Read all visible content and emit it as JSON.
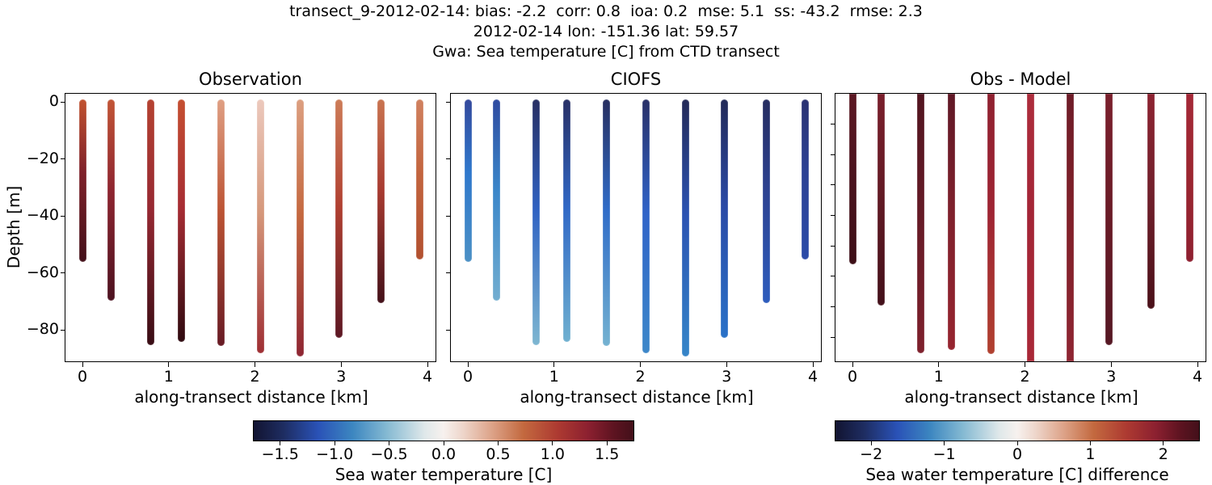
{
  "figure": {
    "title_line1": "transect_9-2012-02-14: bias: -2.2  corr: 0.8  ioa: 0.2  mse: 5.1  ss: -43.2  rmse: 2.3",
    "title_line2": "2012-02-14 lon: -151.36 lat: 59.57",
    "title_line3": "Gwa: Sea temperature [C] from CTD transect",
    "stats": {
      "bias": -2.2,
      "corr": 0.8,
      "ioa": 0.2,
      "mse": 5.1,
      "ss": -43.2,
      "rmse": 2.3
    },
    "date": "2012-02-14",
    "lon": -151.36,
    "lat": 59.57
  },
  "chart_data": {
    "type": "scatter",
    "description": "Three panels of vertical CTD profile scatter columns (sea water temperature) along a transect: Observation, CIOFS model, and Obs - Model difference, with two horizontal diverging colorbars below.",
    "xlabel": "along-transect distance [km]",
    "ylabel": "Depth [m]",
    "x_ticks": [
      "0",
      "1",
      "2",
      "3",
      "4"
    ],
    "x_tick_values": [
      0,
      1,
      2,
      3,
      4
    ],
    "y_ticks": [
      "0",
      "−20",
      "−40",
      "−60",
      "−80"
    ],
    "y_tick_values": [
      0,
      -20,
      -40,
      -60,
      -80
    ],
    "xlim": [
      -0.2,
      4.3
    ],
    "ylim": [
      -91.5,
      3.0
    ],
    "grid": false,
    "legend": "none",
    "stations_x_km": [
      0.0,
      0.33,
      0.79,
      1.15,
      1.61,
      2.07,
      2.52,
      2.97,
      3.46,
      3.91
    ],
    "station_bottom_depth_m": [
      -55,
      -68.5,
      -84,
      -83,
      -84.5,
      -87,
      -88,
      -81.5,
      -69.5,
      -54
    ],
    "station_top_depth_m": 0,
    "panels": [
      {
        "title": "Observation",
        "value_meaning": "sea water temperature [C], warm diverging reds, roughly +0.3 C at surface of mid-transect casts to +1.7 C (dark maroon) at depth",
        "column_gradients": [
          [
            "#c1522f",
            "#7e2029",
            "#431019"
          ],
          [
            "#c25536",
            "#8e2530",
            "#4c1220"
          ],
          [
            "#b54231",
            "#962832",
            "#380c14"
          ],
          [
            "#c54f31",
            "#a62c33",
            "#2f0a10"
          ],
          [
            "#df9f83",
            "#bc5434",
            "#671a24"
          ],
          [
            "#ecc9bd",
            "#d5977a",
            "#9e2e33"
          ],
          [
            "#dc9f80",
            "#c4683f",
            "#8e2532"
          ],
          [
            "#cd7c58",
            "#b04031",
            "#5c1723"
          ],
          [
            "#c97450",
            "#a73a30",
            "#431019"
          ],
          [
            "#d0815f",
            "#c3653f",
            "#b2502f"
          ]
        ]
      },
      {
        "title": "CIOFS",
        "value_meaning": "modeled sea water temperature [C], cool diverging blues, about -1.6 C (dark navy) at surface to -0.5 C (light blue) at depth",
        "column_gradients": [
          [
            "#33489c",
            "#2f78cc",
            "#4b90c5"
          ],
          [
            "#2e4aa0",
            "#3a86c9",
            "#72aed0"
          ],
          [
            "#272e63",
            "#2f62c2",
            "#7db6d1"
          ],
          [
            "#282f66",
            "#3068c6",
            "#6fb0d0"
          ],
          [
            "#272e60",
            "#2f6cc8",
            "#74b2d1"
          ],
          [
            "#282f68",
            "#2f63c8",
            "#3c87c9"
          ],
          [
            "#242a58",
            "#2b53b2",
            "#3585c8"
          ],
          [
            "#232a58",
            "#2a4aa6",
            "#2a72c8"
          ],
          [
            "#252c60",
            "#2c4191",
            "#2d5cbd"
          ],
          [
            "#2a3272",
            "#2c4294",
            "#2b4ba8"
          ]
        ]
      },
      {
        "title": "Obs - Model",
        "value_meaning": "observation minus model temperature difference [C], uniformly dark red (~+2 C); columns are clipped at the axes top and the deepest casts reach the axes bottom",
        "column_gradients": [
          [
            "#5c1823",
            "#4c131e",
            "#3c0e16"
          ],
          [
            "#7a1f2c",
            "#641a25",
            "#43101a"
          ],
          [
            "#521520",
            "#641a26",
            "#7e202c"
          ],
          [
            "#601826",
            "#7e202c",
            "#96242f"
          ],
          [
            "#8f2130",
            "#9e2433",
            "#b0402f"
          ],
          [
            "#ad2d3c",
            "#a32536",
            "#a92837"
          ],
          [
            "#6e1c28",
            "#802029",
            "#8e2532"
          ],
          [
            "#7b202d",
            "#6b1b27",
            "#551723"
          ],
          [
            "#8d2331",
            "#72202c",
            "#4a1019"
          ],
          [
            "#a42837",
            "#9c2630",
            "#8e2030"
          ]
        ]
      }
    ],
    "panel3_unlabeled_y_ticks_every_m": 10,
    "colorbars": [
      {
        "label": "Sea water temperature [C]",
        "tick_labels": [
          "−1.5",
          "−1.0",
          "−0.5",
          "0.0",
          "0.5",
          "1.0",
          "1.5"
        ],
        "tick_values": [
          -1.5,
          -1.0,
          -0.5,
          0.0,
          0.5,
          1.0,
          1.5
        ],
        "range": [
          -1.75,
          1.75
        ]
      },
      {
        "label": "Sea water temperature [C] difference",
        "tick_labels": [
          "−2",
          "−1",
          "0",
          "1",
          "2"
        ],
        "tick_values": [
          -2,
          -1,
          0,
          1,
          2
        ],
        "range": [
          -2.5,
          2.5
        ]
      }
    ],
    "colormap_name": "diverging blue-white-red (cmocean balance style)",
    "colormap_stops": [
      "#121431 0%",
      "#1e2d62 8%",
      "#2a52b7 17%",
      "#3c86c0 26%",
      "#84b9d2 35%",
      "#dfe8ea 45%",
      "#f7f1ee 50%",
      "#eed6cb 55%",
      "#dca186 63%",
      "#c3693f 71%",
      "#ad3a31 80%",
      "#8c2030 88%",
      "#5c1320 95%",
      "#43101a 100%"
    ]
  }
}
